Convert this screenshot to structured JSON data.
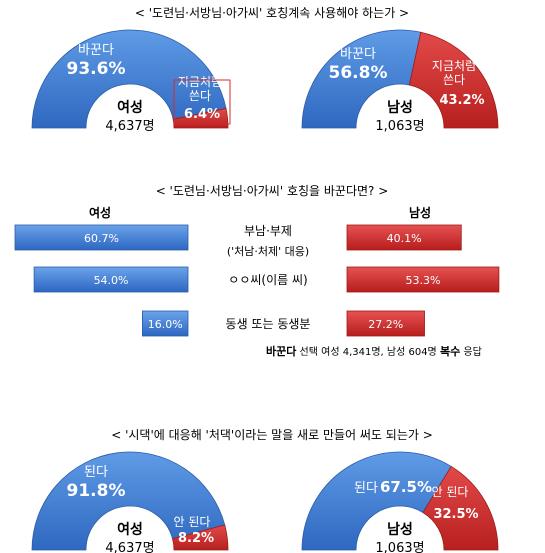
{
  "colors": {
    "blue": "#3f7fd6",
    "red": "#d62a2a",
    "blue_edge": "#2a5da8",
    "red_edge": "#9e1b1b"
  },
  "section1": {
    "title": "< '도련님·서방님·아가씨' 호칭계속 사용해야 하는가 >",
    "charts": [
      {
        "gender": "여성",
        "count": "4,637명",
        "a_label": "바꾼다",
        "a_pct": "93.6%",
        "a_value": 93.6,
        "b_label_1": "지금처럼",
        "b_label_2": "쓴다",
        "b_pct": "6.4%",
        "b_value": 6.4
      },
      {
        "gender": "남성",
        "count": "1,063명",
        "a_label": "바꾼다",
        "a_pct": "56.8%",
        "a_value": 56.8,
        "b_label_1": "지금처럼",
        "b_label_2": "쓴다",
        "b_pct": "43.2%",
        "b_value": 43.2
      }
    ]
  },
  "section2": {
    "title": "< '도련님·서방님·아가씨' 호칭을 바꾼다면? >",
    "female_header": "여성",
    "male_header": "남성",
    "rows": [
      {
        "label_1": "부남·부제",
        "label_2": "('처남·처제' 대응)",
        "female": 60.7,
        "female_label": "60.7%",
        "male": 40.1,
        "male_label": "40.1%"
      },
      {
        "label_1": "ㅇㅇ씨(이름 씨)",
        "label_2": "",
        "female": 54.0,
        "female_label": "54.0%",
        "male": 53.3,
        "male_label": "53.3%"
      },
      {
        "label_1": "동생 또는 동생분",
        "label_2": "",
        "female": 16.0,
        "female_label": "16.0%",
        "male": 27.2,
        "male_label": "27.2%"
      }
    ],
    "note_bold": "바꾼다",
    "note_middle": " 선택 여성 4,341명, 남성 604명 ",
    "note_bold2": "복수",
    "note_end": " 응답"
  },
  "section3": {
    "title": "< '시댁'에 대응해 '처댁'이라는 말을 새로 만들어 써도 되는가 >",
    "charts": [
      {
        "gender": "여성",
        "count": "4,637명",
        "a_label": "된다",
        "a_pct": "91.8%",
        "a_value": 91.8,
        "b_label_1": "안 된다",
        "b_label_2": "",
        "b_pct": "8.2%",
        "b_value": 8.2
      },
      {
        "gender": "남성",
        "count": "1,063명",
        "a_label": "된다",
        "a_pct": "67.5%",
        "a_value": 67.5,
        "b_label_1": "안 된다",
        "b_label_2": "",
        "b_pct": "32.5%",
        "b_value": 32.5
      }
    ]
  },
  "chart_data": [
    {
      "type": "pie",
      "title": "< '도련님·서방님·아가씨' 호칭계속 사용해야 하는가 >",
      "group": "여성 4,637명",
      "labels": [
        "바꾼다",
        "지금처럼 쓴다"
      ],
      "values": [
        93.6,
        6.4
      ]
    },
    {
      "type": "pie",
      "title": "< '도련님·서방님·아가씨' 호칭계속 사용해야 하는가 >",
      "group": "남성 1,063명",
      "labels": [
        "바꾼다",
        "지금처럼 쓴다"
      ],
      "values": [
        56.8,
        43.2
      ]
    },
    {
      "type": "bar",
      "title": "< '도련님·서방님·아가씨' 호칭을 바꾼다면? >",
      "categories": [
        "부남·부제 ('처남·처제' 대응)",
        "ㅇㅇ씨(이름 씨)",
        "동생 또는 동생분"
      ],
      "series": [
        {
          "name": "여성",
          "values": [
            60.7,
            54.0,
            16.0
          ]
        },
        {
          "name": "남성",
          "values": [
            40.1,
            53.3,
            27.2
          ]
        }
      ]
    },
    {
      "type": "pie",
      "title": "< '시댁'에 대응해 '처댁'이라는 말을 새로 만들어 써도 되는가 >",
      "group": "여성 4,637명",
      "labels": [
        "된다",
        "안 된다"
      ],
      "values": [
        91.8,
        8.2
      ]
    },
    {
      "type": "pie",
      "title": "< '시댁'에 대응해 '처댁'이라는 말을 새로 만들어 써도 되는가 >",
      "group": "남성 1,063명",
      "labels": [
        "된다",
        "안 된다"
      ],
      "values": [
        67.5,
        32.5
      ]
    }
  ]
}
